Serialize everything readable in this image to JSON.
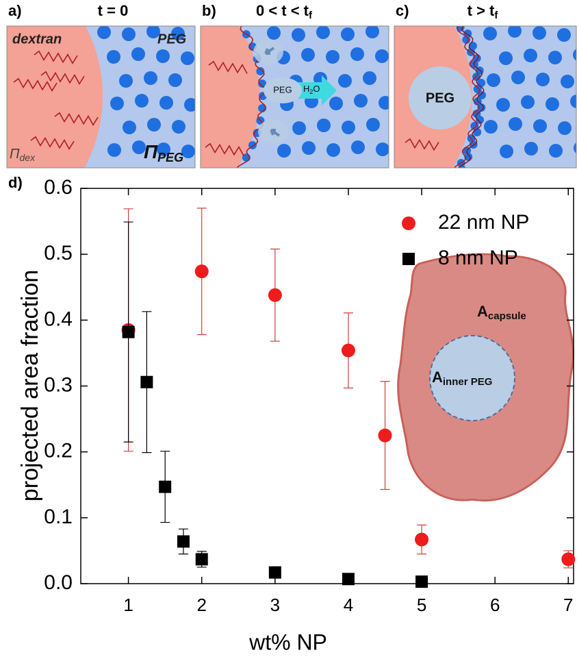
{
  "panels": [
    {
      "label": "a)",
      "title": {
        "text": "t = 0"
      },
      "dextran": "dextran",
      "peg": "PEG",
      "pressure_dex": {
        "symbol": "Π",
        "sub": "dex"
      },
      "pressure_peg": {
        "symbol": "Π",
        "sub": "PEG"
      }
    },
    {
      "label": "b)",
      "title": {
        "text": "0 < t < t",
        "sub": "f"
      },
      "droplet": "PEG",
      "water": {
        "a": "H",
        "sub": "2",
        "b": "O"
      }
    },
    {
      "label": "c)",
      "title": {
        "text": "t > t",
        "sub": "f"
      },
      "droplet": "PEG"
    }
  ],
  "chart_data": {
    "type": "scatter",
    "panel_label": "d)",
    "x_label": "wt% NP",
    "y_label": "projected area fraction",
    "xlim": [
      0.35,
      7.1
    ],
    "ylim": [
      0,
      0.6
    ],
    "xticks": [
      1,
      2,
      3,
      4,
      5,
      6,
      7
    ],
    "yticks": [
      {
        "value": 0,
        "label": "0.0"
      },
      0.1,
      0.2,
      0.3,
      0.4,
      0.5,
      0.6
    ],
    "legend": "upper right",
    "series": [
      {
        "name": "22 nm NP",
        "color": "#ee1c1c",
        "marker": "circle",
        "x": [
          1,
          2,
          3,
          4,
          4.5,
          5,
          7
        ],
        "values": [
          0.385,
          0.474,
          0.438,
          0.354,
          0.225,
          0.067,
          0.037
        ],
        "errors": [
          0.184,
          0.096,
          0.07,
          0.057,
          0.082,
          0.022,
          0.013
        ]
      },
      {
        "name": "8 nm NP",
        "color": "#000000",
        "marker": "square",
        "x": [
          1,
          1.25,
          1.5,
          1.75,
          2,
          3,
          4,
          5
        ],
        "values": [
          0.382,
          0.306,
          0.147,
          0.064,
          0.037,
          0.017,
          0.007,
          0.003
        ],
        "errors": [
          0.167,
          0.107,
          0.054,
          0.019,
          0.012,
          0.005,
          0.002,
          0.002
        ]
      }
    ],
    "inset_labels": [
      {
        "text": "A",
        "sub": "capsule"
      },
      {
        "text": "A",
        "sub": "inner PEG"
      }
    ]
  }
}
